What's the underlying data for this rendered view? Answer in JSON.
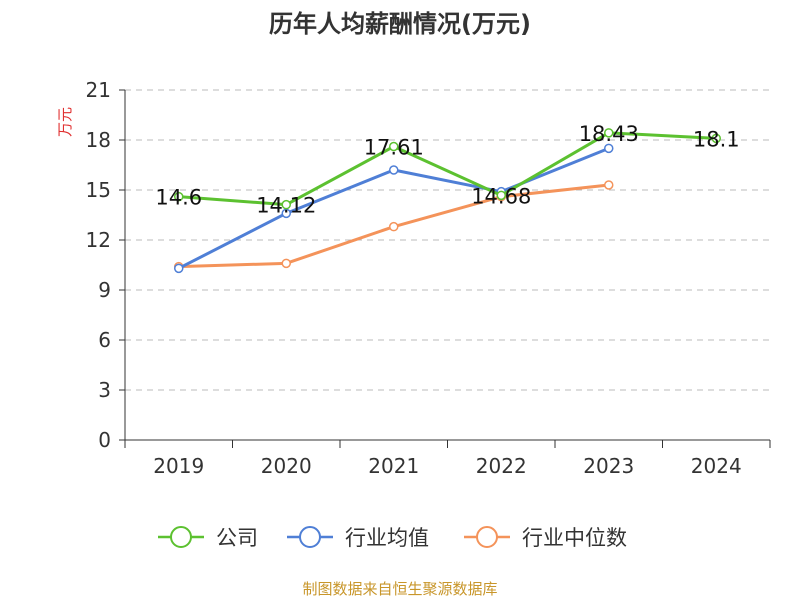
{
  "chart_data": {
    "type": "line",
    "title": "历年人均薪酬情况(万元)",
    "ylabel": "万元",
    "categories": [
      "2019",
      "2020",
      "2021",
      "2022",
      "2023",
      "2024"
    ],
    "ylim": [
      0,
      21
    ],
    "yticks": [
      0,
      3,
      6,
      9,
      12,
      15,
      18,
      21
    ],
    "grid": true,
    "legend_position": "bottom",
    "series": [
      {
        "name": "公司",
        "color": "#5cc130",
        "values": [
          14.6,
          14.12,
          17.61,
          14.68,
          18.43,
          18.1
        ],
        "labels": [
          "14.6",
          "14.12",
          "17.61",
          "14.68",
          "18.43",
          "18.1"
        ]
      },
      {
        "name": "行业均值",
        "color": "#4f7fd6",
        "values": [
          10.3,
          13.6,
          16.2,
          14.9,
          17.5,
          null
        ]
      },
      {
        "name": "行业中位数",
        "color": "#f4935a",
        "values": [
          10.4,
          10.6,
          12.8,
          14.6,
          15.3,
          null
        ]
      }
    ]
  },
  "source": "制图数据来自恒生聚源数据库"
}
